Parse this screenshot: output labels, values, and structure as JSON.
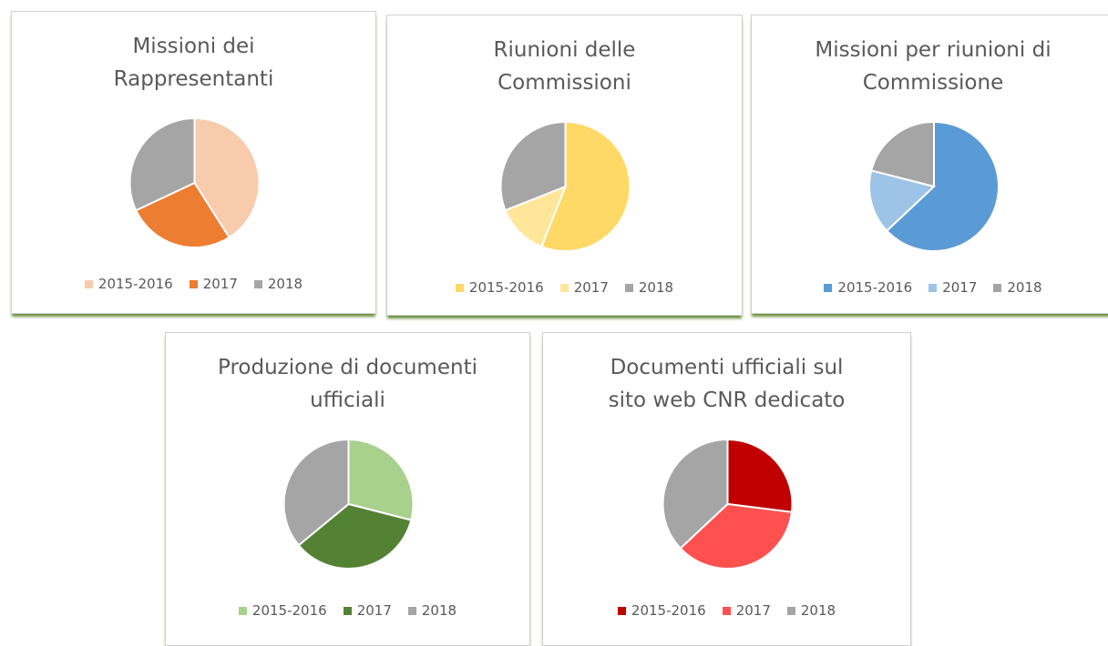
{
  "chart_data": [
    {
      "type": "pie",
      "title": [
        "Missioni dei",
        "Rappresentanti"
      ],
      "categories": [
        "2015-2016",
        "2017",
        "2018"
      ],
      "values": [
        41,
        27,
        32
      ],
      "colors": [
        "#f8cbad",
        "#ed7d31",
        "#a5a5a5"
      ]
    },
    {
      "type": "pie",
      "title": [
        "Riunioni delle",
        "Commissioni"
      ],
      "categories": [
        "2015-2016",
        "2017",
        "2018"
      ],
      "values": [
        56,
        13,
        31
      ],
      "colors": [
        "#ffd966",
        "#ffe699",
        "#a5a5a5"
      ]
    },
    {
      "type": "pie",
      "title": [
        "Missioni per riunioni di",
        "Commissione"
      ],
      "categories": [
        "2015-2016",
        "2017",
        "2018"
      ],
      "values": [
        63,
        16,
        21
      ],
      "colors": [
        "#5b9bd5",
        "#9dc3e6",
        "#a5a5a5"
      ]
    },
    {
      "type": "pie",
      "title": [
        "Produzione di documenti",
        "ufficiali"
      ],
      "categories": [
        "2015-2016",
        "2017",
        "2018"
      ],
      "values": [
        29,
        35,
        36
      ],
      "colors": [
        "#a9d18e",
        "#548235",
        "#a5a5a5"
      ]
    },
    {
      "type": "pie",
      "title": [
        "Documenti ufficiali sul",
        "sito web CNR dedicato"
      ],
      "categories": [
        "2015-2016",
        "2017",
        "2018"
      ],
      "values": [
        27,
        36,
        37
      ],
      "colors": [
        "#c00000",
        "#ff5050",
        "#a5a5a5"
      ]
    }
  ]
}
